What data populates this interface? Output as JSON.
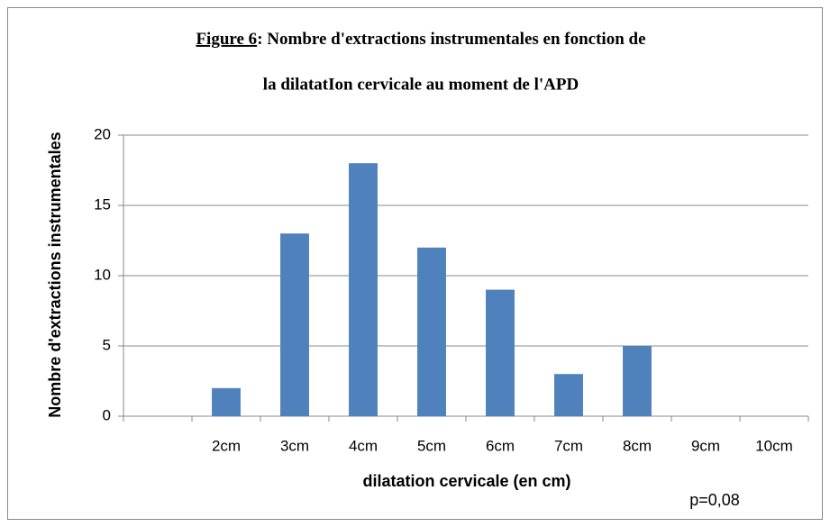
{
  "chart_data": {
    "type": "bar",
    "title_figure": "Figure 6",
    "title_line1": ": Nombre d'extractions instrumentales en fonction de",
    "title_line2": "la dilatatIon cervicale au moment de l'APD",
    "ylabel": "Nombre d'extractions instrumentales",
    "xlabel": "dilatation cervicale (en cm)",
    "annotation": "p=0,08",
    "categories": [
      null,
      "2cm",
      "3cm",
      "4cm",
      "5cm",
      "6cm",
      "7cm",
      "8cm",
      "9cm",
      "10cm"
    ],
    "values": [
      null,
      2,
      13,
      18,
      12,
      9,
      3,
      5,
      0,
      0
    ],
    "color": "#4f81bd",
    "ylim": [
      0,
      20
    ],
    "yticks": [
      0,
      5,
      10,
      15,
      20
    ],
    "grid": true
  }
}
